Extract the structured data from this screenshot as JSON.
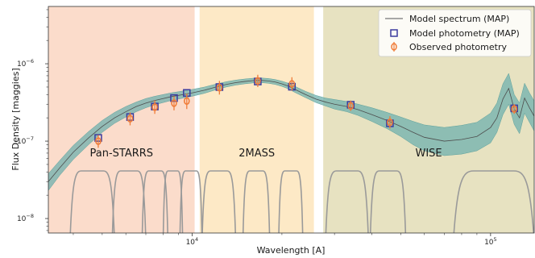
{
  "chart_data": {
    "type": "scatter",
    "title": "",
    "xlabel": "Wavelength [A]",
    "ylabel": "Flux Density [maggies]",
    "xscale": "log",
    "yscale": "log",
    "xlim": [
      3300,
      140000
    ],
    "ylim": [
      6.5e-09,
      5.5e-06
    ],
    "grid": false,
    "legend_position": "top-right",
    "x_ticks": [
      {
        "value": 10000,
        "base": "10",
        "exp": "4"
      },
      {
        "value": 100000,
        "base": "10",
        "exp": "5"
      }
    ],
    "y_ticks": [
      {
        "value": 1e-08,
        "base": "10",
        "exp": "−8"
      },
      {
        "value": 1e-07,
        "base": "10",
        "exp": "−7"
      },
      {
        "value": 1e-06,
        "base": "10",
        "exp": "−6"
      }
    ],
    "bands": [
      {
        "label": "Pan-STARRS",
        "x_range": [
          3300,
          10200
        ],
        "color": "#fbdccb"
      },
      {
        "label": "2MASS",
        "x_range": [
          10600,
          25600
        ],
        "color": "#fde9c6"
      },
      {
        "label": "WISE",
        "x_range": [
          27500,
          140000
        ],
        "color": "#e7e2c1"
      }
    ],
    "legend": [
      {
        "label": "Model spectrum (MAP)",
        "marker": "line",
        "color": "#555555"
      },
      {
        "label": "Model photometry (MAP)",
        "marker": "square",
        "color": "#3b3b9e"
      },
      {
        "label": "Observed photometry",
        "marker": "circle",
        "color": "#f07d3a"
      }
    ],
    "model_spectrum": {
      "x": [
        3300,
        3600,
        4000,
        4500,
        5000,
        5500,
        6000,
        6500,
        7000,
        7500,
        8000,
        8500,
        9000,
        9500,
        10000,
        11000,
        12000,
        13000,
        14000,
        15000,
        16000,
        17000,
        18000,
        19000,
        20000,
        21000,
        22000,
        24000,
        26000,
        28000,
        30000,
        33000,
        36000,
        40000,
        45000,
        50000,
        55000,
        60000,
        70000,
        80000,
        90000,
        100000,
        105000,
        110000,
        115000,
        120000,
        125000,
        130000,
        135000,
        140000
      ],
      "y": [
        3e-08,
        4.5e-08,
        7.2e-08,
        1.1e-07,
        1.55e-07,
        2e-07,
        2.4e-07,
        2.8e-07,
        3.1e-07,
        3.35e-07,
        3.55e-07,
        3.75e-07,
        3.9e-07,
        4.05e-07,
        4.2e-07,
        4.55e-07,
        5e-07,
        5.4e-07,
        5.7e-07,
        5.9e-07,
        6.05e-07,
        6.1e-07,
        6e-07,
        5.8e-07,
        5.5e-07,
        5.15e-07,
        4.7e-07,
        4e-07,
        3.5e-07,
        3.2e-07,
        3e-07,
        2.8e-07,
        2.55e-07,
        2.2e-07,
        1.85e-07,
        1.55e-07,
        1.3e-07,
        1.12e-07,
        1e-07,
        1.05e-07,
        1.15e-07,
        1.5e-07,
        2e-07,
        3.5e-07,
        4.8e-07,
        2.6e-07,
        2e-07,
        3.6e-07,
        2.7e-07,
        2.1e-07
      ],
      "lower": [
        2.3e-08,
        3.6e-08,
        5.8e-08,
        9e-08,
        1.3e-07,
        1.7e-07,
        2.05e-07,
        2.4e-07,
        2.7e-07,
        2.95e-07,
        3.15e-07,
        3.35e-07,
        3.5e-07,
        3.65e-07,
        3.8e-07,
        4.15e-07,
        4.6e-07,
        5e-07,
        5.3e-07,
        5.5e-07,
        5.65e-07,
        5.7e-07,
        5.6e-07,
        5.4e-07,
        5.1e-07,
        4.75e-07,
        4.3e-07,
        3.65e-07,
        3.15e-07,
        2.85e-07,
        2.6e-07,
        2.4e-07,
        2.15e-07,
        1.8e-07,
        1.45e-07,
        1.15e-07,
        9e-08,
        7.5e-08,
        6.5e-08,
        6.8e-08,
        7.5e-08,
        9.5e-08,
        1.3e-07,
        2.2e-07,
        3e-07,
        1.65e-07,
        1.25e-07,
        2.3e-07,
        1.75e-07,
        1.35e-07
      ],
      "upper": [
        3.8e-08,
        5.6e-08,
        8.8e-08,
        1.33e-07,
        1.85e-07,
        2.35e-07,
        2.8e-07,
        3.2e-07,
        3.55e-07,
        3.8e-07,
        4e-07,
        4.2e-07,
        4.35e-07,
        4.5e-07,
        4.65e-07,
        5e-07,
        5.45e-07,
        5.85e-07,
        6.15e-07,
        6.35e-07,
        6.5e-07,
        6.55e-07,
        6.45e-07,
        6.25e-07,
        5.95e-07,
        5.6e-07,
        5.15e-07,
        4.4e-07,
        3.9e-07,
        3.6e-07,
        3.45e-07,
        3.25e-07,
        3e-07,
        2.7e-07,
        2.35e-07,
        2.05e-07,
        1.8e-07,
        1.62e-07,
        1.5e-07,
        1.6e-07,
        1.75e-07,
        2.3e-07,
        3.1e-07,
        5.5e-07,
        7.5e-07,
        4e-07,
        3.1e-07,
        5.6e-07,
        4.2e-07,
        3.3e-07
      ]
    },
    "model_photometry": {
      "x": [
        4850,
        6200,
        7500,
        8700,
        9600,
        12350,
        16600,
        21600,
        34000,
        46000,
        120000
      ],
      "y": [
        1.1e-07,
        2.05e-07,
        2.8e-07,
        3.6e-07,
        4.2e-07,
        5e-07,
        5.9e-07,
        5.05e-07,
        2.95e-07,
        1.7e-07,
        2.65e-07
      ]
    },
    "observed_photometry": {
      "x": [
        4850,
        6200,
        7500,
        8700,
        9600,
        12350,
        16600,
        21600,
        34000,
        46000,
        120000
      ],
      "y": [
        1e-07,
        1.95e-07,
        2.75e-07,
        3.1e-07,
        3.3e-07,
        4.9e-07,
        6e-07,
        5.5e-07,
        2.85e-07,
        1.75e-07,
        2.6e-07
      ],
      "y_err_lower": [
        1.8e-08,
        3.5e-08,
        5e-08,
        6e-08,
        7e-08,
        9e-08,
        1e-07,
        1e-07,
        4e-08,
        3e-08,
        3.5e-08
      ],
      "y_err_upper": [
        2e-08,
        4e-08,
        6e-08,
        7e-08,
        8e-08,
        1.1e-07,
        1.2e-07,
        1.2e-07,
        5e-08,
        3.5e-08,
        4e-08
      ]
    },
    "filter_curves": [
      {
        "x_range": [
          3900,
          5500
        ],
        "band": "Pan-STARRS"
      },
      {
        "x_range": [
          5400,
          7000
        ],
        "band": "Pan-STARRS"
      },
      {
        "x_range": [
          6800,
          8300
        ],
        "band": "Pan-STARRS"
      },
      {
        "x_range": [
          8000,
          9300
        ],
        "band": "Pan-STARRS"
      },
      {
        "x_range": [
          9100,
          10800
        ],
        "band": "Pan-STARRS"
      },
      {
        "x_range": [
          10800,
          14000
        ],
        "band": "2MASS"
      },
      {
        "x_range": [
          14800,
          18200
        ],
        "band": "2MASS"
      },
      {
        "x_range": [
          19500,
          23500
        ],
        "band": "2MASS"
      },
      {
        "x_range": [
          28000,
          39000
        ],
        "band": "WISE"
      },
      {
        "x_range": [
          39500,
          52000
        ],
        "band": "WISE"
      },
      {
        "x_range": [
          75000,
          140000
        ],
        "band": "WISE"
      }
    ]
  }
}
